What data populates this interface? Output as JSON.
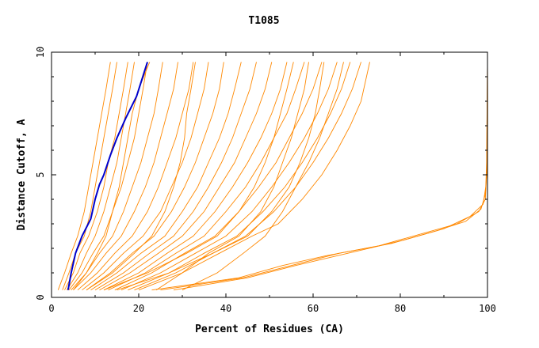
{
  "chart_data": {
    "type": "line",
    "title": "T1085",
    "xlabel": "Percent of Residues (CA)",
    "ylabel": "Distance Cutoff, A",
    "xlim": [
      0,
      100
    ],
    "ylim": [
      0,
      10
    ],
    "x_ticks": [
      0,
      20,
      40,
      60,
      80,
      100
    ],
    "y_ticks": [
      0,
      5,
      10
    ],
    "grid": false,
    "colors": {
      "highlight": "#0000cc",
      "bundle": "#ff8800",
      "axes": "#000000"
    },
    "highlight_series": {
      "x": [
        3.8,
        4.5,
        5.5,
        7.0,
        9.0,
        10.0,
        11.0,
        12.0,
        13.5,
        15.0,
        17.0,
        19.5,
        22.0
      ],
      "y": [
        0.3,
        1.0,
        1.8,
        2.5,
        3.2,
        4.0,
        4.6,
        5.0,
        5.8,
        6.5,
        7.3,
        8.2,
        9.6
      ]
    },
    "bundle_series": [
      {
        "x": [
          1.5,
          3.0,
          4.5,
          6.0,
          7.5,
          8.5,
          9.5,
          10.5,
          11.5,
          12.5,
          13.5
        ],
        "y": [
          0.3,
          1.0,
          1.8,
          2.5,
          3.5,
          4.5,
          5.5,
          6.5,
          7.5,
          8.5,
          9.6
        ]
      },
      {
        "x": [
          2.5,
          4.0,
          5.5,
          7.5,
          9.0,
          10.0,
          11.0,
          12.0,
          13.0,
          14.0,
          15.0
        ],
        "y": [
          0.3,
          1.0,
          1.8,
          2.5,
          3.5,
          4.5,
          5.5,
          6.5,
          7.5,
          8.5,
          9.6
        ]
      },
      {
        "x": [
          3.0,
          5.0,
          6.5,
          8.5,
          10.5,
          12.0,
          13.0,
          14.5,
          15.5,
          16.5,
          17.5
        ],
        "y": [
          0.3,
          1.0,
          1.8,
          2.5,
          3.5,
          4.5,
          5.5,
          6.5,
          7.5,
          8.5,
          9.6
        ]
      },
      {
        "x": [
          3.5,
          6.0,
          8.0,
          10.0,
          12.0,
          13.5,
          15.0,
          16.0,
          17.0,
          18.0,
          19.0
        ],
        "y": [
          0.3,
          1.0,
          1.8,
          2.5,
          3.5,
          4.5,
          5.5,
          6.5,
          7.5,
          8.5,
          9.6
        ]
      },
      {
        "x": [
          4.0,
          7.0,
          9.5,
          12.0,
          14.0,
          16.0,
          17.5,
          19.0,
          20.0,
          21.0,
          22.0
        ],
        "y": [
          0.3,
          1.0,
          1.8,
          2.5,
          3.5,
          4.5,
          5.5,
          6.5,
          7.5,
          8.5,
          9.6
        ]
      },
      {
        "x": [
          4.5,
          8.0,
          11.0,
          14.0,
          16.5,
          18.5,
          20.5,
          22.0,
          23.5,
          24.5,
          25.5
        ],
        "y": [
          0.3,
          1.0,
          1.8,
          2.5,
          3.5,
          4.5,
          5.5,
          6.5,
          7.5,
          8.5,
          9.6
        ]
      },
      {
        "x": [
          5.0,
          9.0,
          12.5,
          16.0,
          19.0,
          21.5,
          23.5,
          25.0,
          26.5,
          28.0,
          29.0
        ],
        "y": [
          0.3,
          1.0,
          1.8,
          2.5,
          3.5,
          4.5,
          5.5,
          6.5,
          7.5,
          8.5,
          9.6
        ]
      },
      {
        "x": [
          6.0,
          10.5,
          14.5,
          18.5,
          22.0,
          24.5,
          26.5,
          28.5,
          30.0,
          31.5,
          32.5
        ],
        "y": [
          0.3,
          1.0,
          1.8,
          2.5,
          3.5,
          4.5,
          5.5,
          6.5,
          7.5,
          8.5,
          9.6
        ]
      },
      {
        "x": [
          7.0,
          12.0,
          16.5,
          21.0,
          25.0,
          27.5,
          30.0,
          32.0,
          33.5,
          35.0,
          36.0
        ],
        "y": [
          0.3,
          1.0,
          1.8,
          2.5,
          3.5,
          4.5,
          5.5,
          6.5,
          7.5,
          8.5,
          9.6
        ]
      },
      {
        "x": [
          8.0,
          13.5,
          18.5,
          23.5,
          27.5,
          30.5,
          33.0,
          35.0,
          37.0,
          38.5,
          39.5
        ],
        "y": [
          0.3,
          1.0,
          1.8,
          2.5,
          3.5,
          4.5,
          5.5,
          6.5,
          7.5,
          8.5,
          9.6
        ]
      },
      {
        "x": [
          9.0,
          15.0,
          20.5,
          26.0,
          30.0,
          33.5,
          36.0,
          38.5,
          40.5,
          42.0,
          43.5
        ],
        "y": [
          0.3,
          1.0,
          1.8,
          2.5,
          3.5,
          4.5,
          5.5,
          6.5,
          7.5,
          8.5,
          9.6
        ]
      },
      {
        "x": [
          10.0,
          16.5,
          22.5,
          28.0,
          32.5,
          36.0,
          39.0,
          41.5,
          43.5,
          45.5,
          47.0
        ],
        "y": [
          0.3,
          1.0,
          1.8,
          2.5,
          3.5,
          4.5,
          5.5,
          6.5,
          7.5,
          8.5,
          9.6
        ]
      },
      {
        "x": [
          11.0,
          18.0,
          24.5,
          30.0,
          35.0,
          38.5,
          42.0,
          44.5,
          47.0,
          49.0,
          50.5
        ],
        "y": [
          0.3,
          1.0,
          1.8,
          2.5,
          3.5,
          4.5,
          5.5,
          6.5,
          7.5,
          8.5,
          9.6
        ]
      },
      {
        "x": [
          12.0,
          20.0,
          26.5,
          32.5,
          37.5,
          41.5,
          45.0,
          48.0,
          50.5,
          52.5,
          54.0
        ],
        "y": [
          0.3,
          1.0,
          1.8,
          2.5,
          3.5,
          4.5,
          5.5,
          6.5,
          7.5,
          8.5,
          9.6
        ]
      },
      {
        "x": [
          13.0,
          21.5,
          28.5,
          35.0,
          40.0,
          44.5,
          48.0,
          51.0,
          54.0,
          56.0,
          58.0
        ],
        "y": [
          0.3,
          1.0,
          1.8,
          2.5,
          3.5,
          4.5,
          5.5,
          6.5,
          7.5,
          8.5,
          9.6
        ]
      },
      {
        "x": [
          14.5,
          23.0,
          30.5,
          37.5,
          43.0,
          47.5,
          51.5,
          54.5,
          57.5,
          60.0,
          62.0
        ],
        "y": [
          0.3,
          1.0,
          1.8,
          2.5,
          3.5,
          4.5,
          5.5,
          6.5,
          7.5,
          8.5,
          9.6
        ]
      },
      {
        "x": [
          16.0,
          25.0,
          33.0,
          40.0,
          46.0,
          50.5,
          54.5,
          58.0,
          61.0,
          63.5,
          65.5
        ],
        "y": [
          0.3,
          1.0,
          1.8,
          2.5,
          3.5,
          4.5,
          5.5,
          6.5,
          7.5,
          8.5,
          9.6
        ]
      },
      {
        "x": [
          17.5,
          27.0,
          35.0,
          42.5,
          48.5,
          53.5,
          57.5,
          61.0,
          64.0,
          66.5,
          68.5
        ],
        "y": [
          0.3,
          1.0,
          1.8,
          2.5,
          3.5,
          4.5,
          5.5,
          6.5,
          7.5,
          8.5,
          9.6
        ]
      },
      {
        "x": [
          19.0,
          28.5,
          37.0,
          44.5,
          51.0,
          56.0,
          60.0,
          63.5,
          66.5,
          69.0,
          71.0
        ],
        "y": [
          0.3,
          1.0,
          1.8,
          2.5,
          3.5,
          4.5,
          5.5,
          6.5,
          7.5,
          8.5,
          9.6
        ]
      },
      {
        "x": [
          20.0,
          30.0,
          38.5,
          46.0,
          52.0,
          57.5,
          62.0,
          65.5,
          68.5,
          71.0,
          73.0
        ],
        "y": [
          0.3,
          1.0,
          1.8,
          2.5,
          3.0,
          4.0,
          5.0,
          6.0,
          7.0,
          8.0,
          9.6
        ]
      },
      {
        "x": [
          5.0,
          8.0,
          10.5,
          12.5,
          14.0,
          15.5,
          16.5,
          17.5,
          18.5,
          20.0,
          22.5
        ],
        "y": [
          0.3,
          1.0,
          1.8,
          2.5,
          3.5,
          4.5,
          5.5,
          6.5,
          7.5,
          8.5,
          9.6
        ]
      },
      {
        "x": [
          8.0,
          14.0,
          19.0,
          23.0,
          26.0,
          28.0,
          29.5,
          30.5,
          31.0,
          32.0,
          33.0
        ],
        "y": [
          0.3,
          1.0,
          1.8,
          2.5,
          3.5,
          4.5,
          5.5,
          6.5,
          7.5,
          8.5,
          9.6
        ]
      },
      {
        "x": [
          12.0,
          22.0,
          31.0,
          38.0,
          43.0,
          46.5,
          49.0,
          51.0,
          52.5,
          54.0,
          55.5
        ],
        "y": [
          0.3,
          1.0,
          1.8,
          2.5,
          3.5,
          4.5,
          5.5,
          6.5,
          7.5,
          8.5,
          9.6
        ]
      },
      {
        "x": [
          15.0,
          27.0,
          37.0,
          45.0,
          50.5,
          54.5,
          57.0,
          59.0,
          60.5,
          61.5,
          62.5
        ],
        "y": [
          0.3,
          1.0,
          1.8,
          2.5,
          3.5,
          4.5,
          5.5,
          6.5,
          7.5,
          8.5,
          9.6
        ]
      },
      {
        "x": [
          24.0,
          30.0,
          36.0,
          43.0,
          48.0,
          51.0,
          53.0,
          55.0,
          56.5,
          58.0,
          59.0
        ],
        "y": [
          0.3,
          1.0,
          1.8,
          2.5,
          3.5,
          4.5,
          5.5,
          6.5,
          7.5,
          8.5,
          9.6
        ]
      },
      {
        "x": [
          30.0,
          38.0,
          44.0,
          49.0,
          53.0,
          56.0,
          59.0,
          61.5,
          63.5,
          65.5,
          67.0
        ],
        "y": [
          0.3,
          1.0,
          1.8,
          2.5,
          3.5,
          4.5,
          5.5,
          6.5,
          7.5,
          8.5,
          9.6
        ]
      },
      {
        "x": [
          23.0,
          43.0,
          53.0,
          63.0,
          75.0,
          85.0,
          93.0,
          98.0,
          99.5,
          99.8,
          100.0
        ],
        "y": [
          0.3,
          0.8,
          1.3,
          1.7,
          2.1,
          2.6,
          3.0,
          3.5,
          4.0,
          5.0,
          6.0
        ]
      },
      {
        "x": [
          25.0,
          44.0,
          55.0,
          66.0,
          78.0,
          88.0,
          95.0,
          98.5,
          99.5,
          99.8,
          100.0
        ],
        "y": [
          0.3,
          0.8,
          1.3,
          1.8,
          2.2,
          2.7,
          3.1,
          3.6,
          4.2,
          5.0,
          9.6
        ]
      },
      {
        "x": [
          28.0,
          45.0,
          56.0,
          68.0,
          80.0,
          90.0,
          96.0,
          99.0,
          99.6,
          99.8,
          100.0
        ],
        "y": [
          0.3,
          0.8,
          1.3,
          1.8,
          2.3,
          2.8,
          3.3,
          3.8,
          4.5,
          5.5,
          9.6
        ]
      }
    ]
  }
}
